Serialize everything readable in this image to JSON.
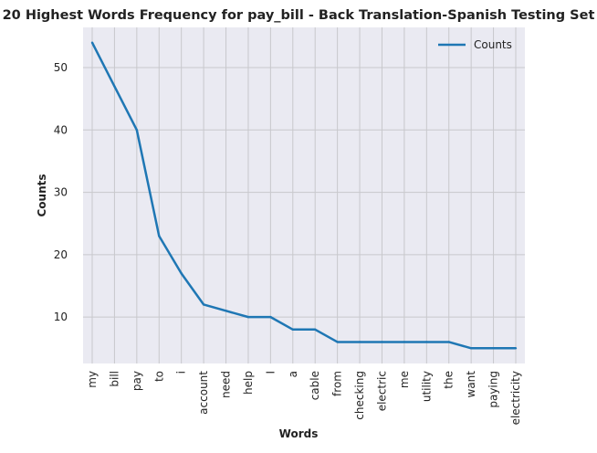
{
  "chart_data": {
    "type": "line",
    "title": "20 Highest Words Frequency for pay_bill - Back Translation-Spanish Testing Set",
    "xlabel": "Words",
    "ylabel": "Counts",
    "categories": [
      "my",
      "bill",
      "pay",
      "to",
      "i",
      "account",
      "need",
      "help",
      "I",
      "a",
      "cable",
      "from",
      "checking",
      "electric",
      "me",
      "utility",
      "the",
      "want",
      "paying",
      "electricity"
    ],
    "series": [
      {
        "name": "Counts",
        "values": [
          54,
          47,
          40,
          23,
          17,
          12,
          11,
          10,
          10,
          8,
          8,
          6,
          6,
          6,
          6,
          6,
          6,
          5,
          5,
          5
        ]
      }
    ],
    "ylim": [
      2.55,
      56.45
    ],
    "yticks": [
      10,
      20,
      30,
      40,
      50
    ],
    "grid": true,
    "legend_position": "top-right",
    "colors": {
      "line": "#1f77b4",
      "plot_bg": "#eaeaf2",
      "grid": "#c8c8cc"
    }
  }
}
